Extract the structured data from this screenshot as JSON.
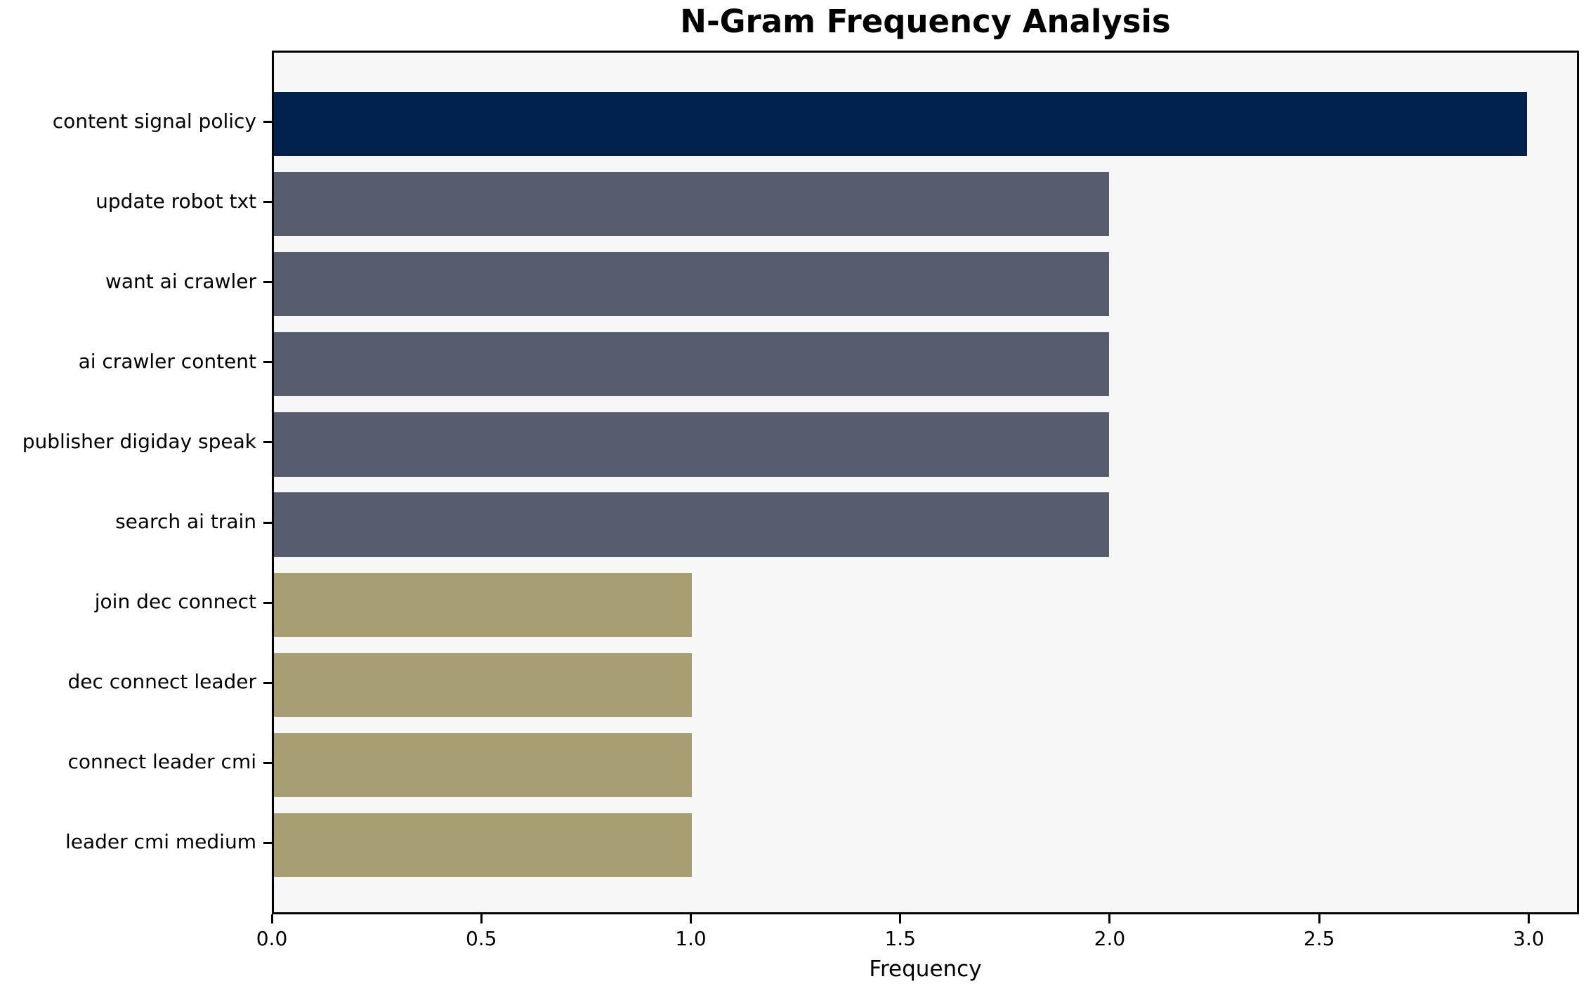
{
  "chart_data": {
    "type": "bar",
    "orientation": "horizontal",
    "title": "N-Gram Frequency Analysis",
    "xlabel": "Frequency",
    "ylabel": "",
    "categories": [
      "content signal policy",
      "update robot txt",
      "want ai crawler",
      "ai crawler content",
      "publisher digiday speak",
      "search ai train",
      "join dec connect",
      "dec connect leader",
      "connect leader cmi",
      "leader cmi medium"
    ],
    "values": [
      3,
      2,
      2,
      2,
      2,
      2,
      1,
      1,
      1,
      1
    ],
    "bar_colors": [
      "#02224e",
      "#575d6e",
      "#575d6e",
      "#575d6e",
      "#575d6e",
      "#575d6e",
      "#a89e74",
      "#a89e74",
      "#a89e74",
      "#a89e74"
    ],
    "xticks": [
      0.0,
      0.5,
      1.0,
      1.5,
      2.0,
      2.5,
      3.0
    ],
    "xtick_labels": [
      "0.0",
      "0.5",
      "1.0",
      "1.5",
      "2.0",
      "2.5",
      "3.0"
    ],
    "xlim": [
      0,
      3.12
    ],
    "grid": false,
    "legend": null,
    "colors": {
      "plot_background": "#f7f7f7",
      "figure_background": "#ffffff",
      "axis": "#000000",
      "text": "#000000"
    }
  }
}
